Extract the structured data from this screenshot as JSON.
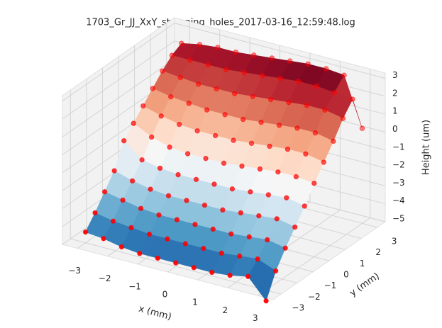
{
  "chart_data": {
    "type": "surface3d",
    "title": "1703_Gr_JJ_XxY_stamping_holes_2017-03-16_12:59:48.log",
    "xlabel": "x (mm)",
    "ylabel": "y (mm)",
    "zlabel": "Height (um)",
    "x": [
      -3,
      -2.4,
      -1.8,
      -1.2,
      -0.6,
      0,
      0.6,
      1.2,
      1.8,
      2.4,
      3
    ],
    "y": [
      -3,
      -2.4,
      -1.8,
      -1.2,
      -0.6,
      0,
      0.6,
      1.2,
      1.8,
      2.4,
      3
    ],
    "z": [
      [
        -4.4,
        -4.5,
        -4.7,
        -4.8,
        -4.8,
        -4.8,
        -4.8,
        -4.8,
        -4.7,
        -4.5,
        -5.6
      ],
      [
        -3.7,
        -3.9,
        -4.0,
        -4.1,
        -4.1,
        -4.1,
        -4.1,
        -4.1,
        -4.0,
        -3.9,
        -4.3
      ],
      [
        -2.9,
        -3.1,
        -3.3,
        -3.4,
        -3.4,
        -3.4,
        -3.4,
        -3.4,
        -3.3,
        -3.2,
        -3.4
      ],
      [
        -2.1,
        -2.4,
        -2.6,
        -2.7,
        -2.7,
        -2.7,
        -2.7,
        -2.6,
        -2.5,
        -2.4,
        -2.6
      ],
      [
        -0.8,
        -1.6,
        -1.8,
        -1.9,
        -1.9,
        -1.9,
        -1.9,
        -1.8,
        -1.7,
        -1.6,
        -1.8
      ],
      [
        -0.2,
        -0.7,
        -1.0,
        -1.1,
        -1.1,
        -1.1,
        -1.0,
        -0.9,
        -0.8,
        -0.8,
        -0.9
      ],
      [
        0.4,
        0.1,
        -0.1,
        -0.2,
        -0.2,
        -0.2,
        -0.1,
        0.0,
        0.1,
        0.1,
        -0.1
      ],
      [
        1.0,
        0.8,
        0.7,
        0.6,
        0.6,
        0.6,
        0.7,
        0.8,
        0.9,
        0.9,
        0.7
      ],
      [
        1.6,
        1.5,
        1.4,
        1.4,
        1.4,
        1.5,
        1.6,
        1.7,
        1.8,
        1.8,
        1.6
      ],
      [
        2.1,
        2.1,
        2.1,
        2.1,
        2.2,
        2.3,
        2.4,
        2.5,
        2.5,
        2.4,
        2.3
      ],
      [
        2.4,
        2.6,
        2.7,
        2.7,
        2.8,
        2.9,
        3.0,
        3.1,
        3.1,
        3.0,
        0.3
      ]
    ],
    "xlim": [
      -3.5,
      3.5
    ],
    "ylim": [
      -3.5,
      3.5
    ],
    "zlim": [
      -5,
      3.3
    ],
    "xticks": [
      {
        "value": -3,
        "label": "−3"
      },
      {
        "value": -2,
        "label": "−2"
      },
      {
        "value": -1,
        "label": "−1"
      },
      0,
      1,
      2,
      3
    ],
    "yticks": [
      {
        "value": -3,
        "label": "−3"
      },
      {
        "value": -2,
        "label": "−2"
      },
      {
        "value": -1,
        "label": "−1"
      },
      0,
      1,
      2,
      3
    ],
    "zticks": [
      {
        "value": -5,
        "label": "−5"
      },
      {
        "value": -4,
        "label": "−4"
      },
      {
        "value": -3,
        "label": "−3"
      },
      {
        "value": -2,
        "label": "−2"
      },
      {
        "value": -1,
        "label": "−1"
      },
      0,
      1,
      2,
      3
    ],
    "grid": true,
    "colormap": [
      "#053061",
      "#2166ac",
      "#4393c3",
      "#92c5de",
      "#d1e5f0",
      "#f7f7f7",
      "#fddbc7",
      "#f4a582",
      "#d6604d",
      "#b2182b",
      "#67001f"
    ],
    "marker_color": "#ff0000"
  }
}
